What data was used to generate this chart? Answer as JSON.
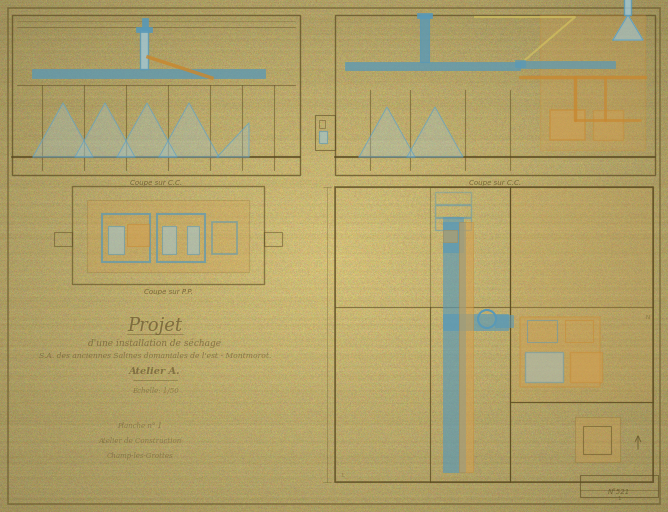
{
  "bg_color": "#c8b068",
  "paper_color": "#d4be7a",
  "border_lw": 2.0,
  "blue": "#5899b8",
  "orange": "#c88830",
  "brown": "#8b6a30",
  "dark": "#5a4a20",
  "lblue": "#a0c8d8",
  "lorange": "#d4a050",
  "lyellow": "#d8c860",
  "noise_seed": 42,
  "title_lines": [
    "Projet",
    "d’une installation de séchage",
    "S.A. des anciennes Salines domaniales de l’est - Montmorot.",
    "Atelier A."
  ],
  "subtitle_lines": [
    "Échelle: 1/50",
    "Planche n° 1",
    "Atelier de Construction",
    "Champ-les-Grottes"
  ]
}
